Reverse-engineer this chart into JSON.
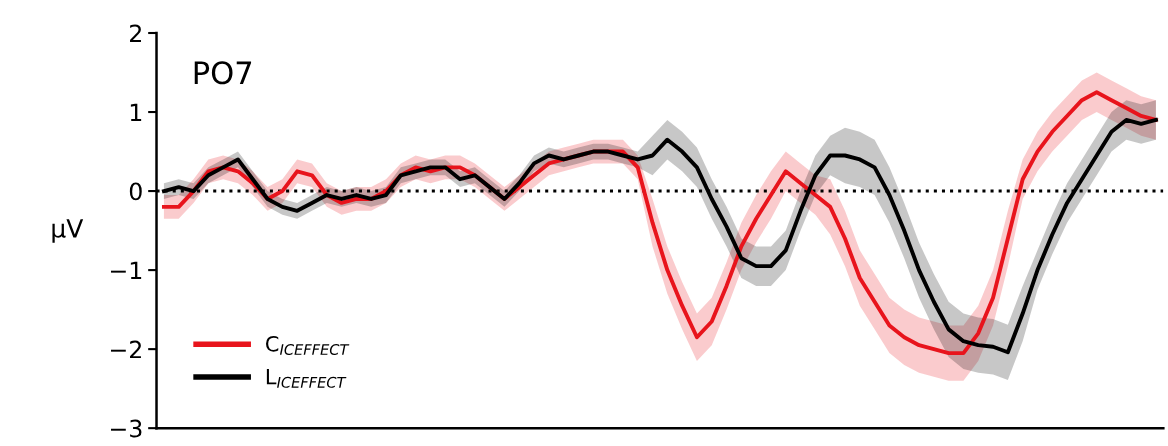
{
  "chart_data": {
    "type": "line",
    "title": "PO7",
    "ylabel": "μV",
    "categories": [
      null,
      null,
      null,
      null,
      null,
      null,
      null,
      null,
      null,
      null,
      null,
      null,
      null,
      null,
      null,
      null,
      null,
      null,
      null,
      null,
      null,
      null,
      null,
      null,
      null,
      null,
      null,
      null,
      null,
      null,
      null,
      null,
      null,
      null,
      null,
      null,
      null,
      null,
      null,
      null,
      null,
      null,
      null,
      null,
      null,
      null,
      null,
      null,
      null,
      null,
      null,
      null,
      null,
      null,
      null,
      null,
      null,
      null,
      null,
      null,
      null,
      null,
      null,
      null,
      null,
      null,
      null,
      null
    ],
    "series": [
      {
        "name": "C$_{ICEFFECT}$",
        "color": "#e8141c",
        "values": [
          -0.2,
          -0.2,
          0.0,
          0.25,
          0.3,
          0.25,
          0.1,
          -0.1,
          0.0,
          0.25,
          0.2,
          -0.05,
          -0.15,
          -0.1,
          -0.1,
          0.0,
          0.2,
          0.3,
          0.25,
          0.3,
          0.3,
          0.2,
          0.05,
          -0.1,
          0.05,
          0.2,
          0.35,
          0.4,
          0.45,
          0.5,
          0.5,
          0.5,
          0.3,
          -0.4,
          -1.0,
          -1.45,
          -1.85,
          -1.65,
          -1.2,
          -0.7,
          -0.35,
          -0.05,
          0.25,
          0.1,
          -0.05,
          -0.2,
          -0.6,
          -1.1,
          -1.4,
          -1.7,
          -1.85,
          -1.95,
          -2.0,
          -2.05,
          -2.05,
          -1.8,
          -1.35,
          -0.6,
          0.15,
          0.5,
          0.75,
          0.95,
          1.15,
          1.25,
          1.15,
          1.05,
          0.95,
          0.9
        ],
        "lower": [
          -0.35,
          -0.35,
          -0.15,
          0.1,
          0.15,
          0.1,
          -0.05,
          -0.25,
          -0.15,
          0.1,
          0.05,
          -0.2,
          -0.3,
          -0.25,
          -0.25,
          -0.15,
          0.05,
          0.15,
          0.1,
          0.15,
          0.15,
          0.05,
          -0.1,
          -0.25,
          -0.1,
          0.05,
          0.2,
          0.25,
          0.3,
          0.35,
          0.35,
          0.35,
          0.15,
          -0.7,
          -1.3,
          -1.75,
          -2.15,
          -1.95,
          -1.5,
          -1.0,
          -0.65,
          -0.35,
          0.0,
          -0.15,
          -0.3,
          -0.55,
          -0.95,
          -1.45,
          -1.75,
          -2.05,
          -2.2,
          -2.3,
          -2.35,
          -2.4,
          -2.4,
          -2.15,
          -1.7,
          -0.95,
          -0.1,
          0.25,
          0.5,
          0.7,
          0.9,
          1.0,
          0.9,
          0.8,
          0.7,
          0.65
        ],
        "upper": [
          -0.05,
          -0.05,
          0.15,
          0.4,
          0.45,
          0.4,
          0.25,
          0.05,
          0.15,
          0.4,
          0.35,
          0.1,
          0.0,
          0.05,
          0.05,
          0.15,
          0.35,
          0.45,
          0.4,
          0.45,
          0.45,
          0.35,
          0.2,
          0.05,
          0.2,
          0.35,
          0.5,
          0.55,
          0.6,
          0.65,
          0.65,
          0.65,
          0.45,
          -0.1,
          -0.7,
          -1.15,
          -1.55,
          -1.35,
          -0.9,
          -0.4,
          -0.05,
          0.25,
          0.5,
          0.35,
          0.2,
          0.15,
          -0.25,
          -0.75,
          -1.05,
          -1.35,
          -1.5,
          -1.6,
          -1.65,
          -1.7,
          -1.7,
          -1.45,
          -1.0,
          -0.25,
          0.4,
          0.75,
          1.0,
          1.2,
          1.4,
          1.5,
          1.4,
          1.3,
          1.2,
          1.15
        ]
      },
      {
        "name": "L$_{ICEFFECT}$",
        "color": "#000000",
        "values": [
          0.0,
          0.05,
          0.0,
          0.2,
          0.3,
          0.4,
          0.15,
          -0.1,
          -0.2,
          -0.25,
          -0.15,
          -0.05,
          -0.1,
          -0.05,
          -0.1,
          -0.05,
          0.2,
          0.25,
          0.3,
          0.3,
          0.15,
          0.2,
          0.05,
          -0.1,
          0.1,
          0.35,
          0.45,
          0.4,
          0.45,
          0.5,
          0.5,
          0.45,
          0.4,
          0.45,
          0.65,
          0.5,
          0.3,
          -0.1,
          -0.45,
          -0.85,
          -0.95,
          -0.95,
          -0.75,
          -0.25,
          0.2,
          0.45,
          0.45,
          0.4,
          0.3,
          -0.05,
          -0.5,
          -1.0,
          -1.4,
          -1.75,
          -1.9,
          -1.95,
          -1.97,
          -2.04,
          -1.55,
          -1.0,
          -0.55,
          -0.15,
          0.15,
          0.45,
          0.75,
          0.9,
          0.85,
          0.9
        ],
        "lower": [
          -0.1,
          -0.05,
          -0.1,
          0.1,
          0.2,
          0.3,
          0.05,
          -0.2,
          -0.3,
          -0.35,
          -0.25,
          -0.15,
          -0.2,
          -0.15,
          -0.2,
          -0.15,
          0.1,
          0.15,
          0.2,
          0.2,
          0.05,
          0.1,
          -0.05,
          -0.2,
          0.0,
          0.25,
          0.35,
          0.3,
          0.35,
          0.4,
          0.4,
          0.35,
          0.3,
          0.2,
          0.4,
          0.25,
          0.05,
          -0.35,
          -0.7,
          -1.1,
          -1.2,
          -1.2,
          -1.0,
          -0.5,
          -0.05,
          0.2,
          0.1,
          0.05,
          -0.05,
          -0.4,
          -0.85,
          -1.35,
          -1.75,
          -2.1,
          -2.25,
          -2.3,
          -2.32,
          -2.39,
          -1.9,
          -1.25,
          -0.8,
          -0.4,
          -0.1,
          0.2,
          0.5,
          0.65,
          0.6,
          0.65
        ],
        "upper": [
          0.1,
          0.15,
          0.1,
          0.3,
          0.4,
          0.5,
          0.25,
          0.0,
          -0.1,
          -0.15,
          -0.05,
          0.05,
          0.0,
          0.05,
          0.0,
          0.05,
          0.3,
          0.35,
          0.4,
          0.4,
          0.25,
          0.3,
          0.15,
          0.0,
          0.2,
          0.45,
          0.55,
          0.5,
          0.55,
          0.6,
          0.6,
          0.55,
          0.5,
          0.7,
          0.9,
          0.75,
          0.55,
          0.15,
          -0.2,
          -0.6,
          -0.7,
          -0.7,
          -0.5,
          0.0,
          0.45,
          0.7,
          0.8,
          0.75,
          0.65,
          0.3,
          -0.15,
          -0.65,
          -1.05,
          -1.4,
          -1.55,
          -1.6,
          -1.62,
          -1.69,
          -1.2,
          -0.75,
          -0.3,
          0.1,
          0.4,
          0.7,
          1.0,
          1.15,
          1.1,
          1.15
        ]
      }
    ],
    "ylim": [
      -3,
      2
    ],
    "yticks": [
      -3,
      -2,
      -1,
      0,
      1,
      2
    ],
    "ref_lines": [
      {
        "axis": "y",
        "value": 0,
        "color": "#000000",
        "line_style": "dotted"
      }
    ],
    "tick_labels": "y",
    "legend": "bottom left",
    "grid": false,
    "line_style": "solid",
    "marker": "none"
  }
}
